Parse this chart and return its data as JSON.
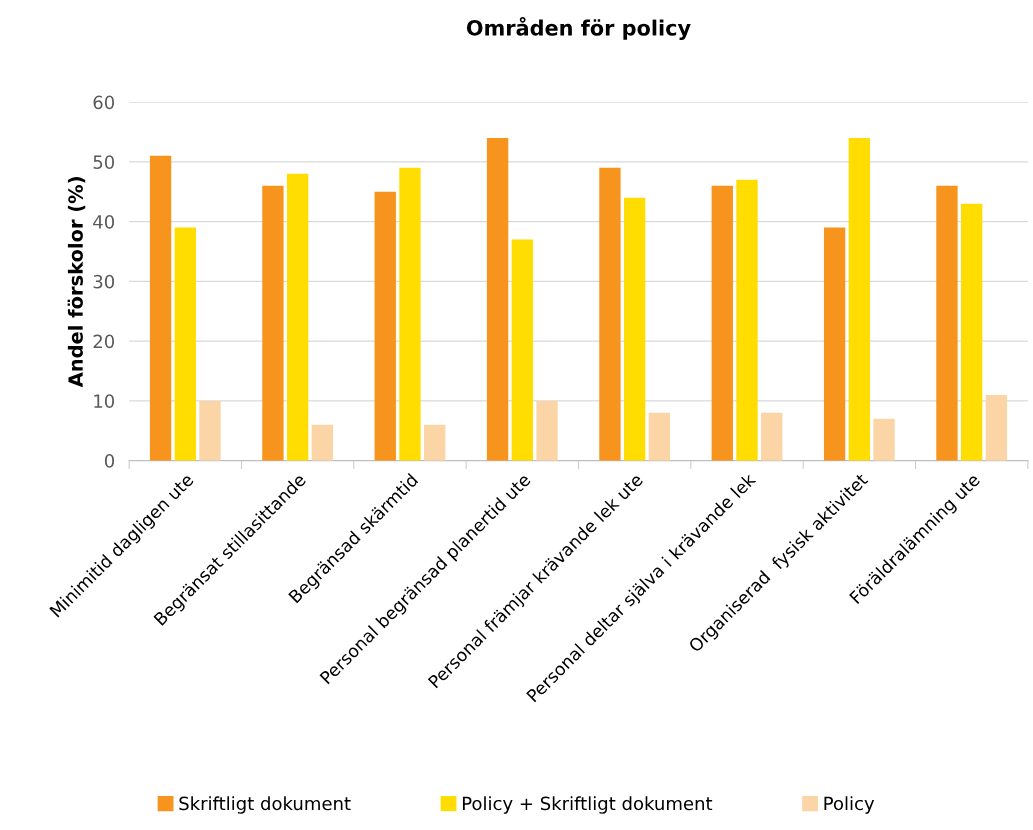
{
  "chart_data": {
    "type": "bar",
    "title": "Områden för policy",
    "ylabel": "Andel förskolor (%)",
    "categories": [
      "Minimitid dagligen ute",
      "Begränsat stillasittande",
      "Begränsad skärmtid",
      "Personal begränsad planertid ute",
      "Personal främjar krävande lek ute",
      "Personal deltar själva i krävande lek",
      "Organiserad  fysisk aktivitet",
      "Föräldralämning ute"
    ],
    "series": [
      {
        "name": "Skriftligt dokument",
        "color": "#f7941d",
        "values": [
          51,
          46,
          45,
          54,
          49,
          46,
          39,
          46
        ]
      },
      {
        "name": "Policy + Skriftligt dokument",
        "color": "#ffdd00",
        "values": [
          39,
          48,
          49,
          37,
          44,
          47,
          54,
          43
        ]
      },
      {
        "name": "Policy",
        "color": "#fbd5a5",
        "values": [
          10,
          6,
          6,
          10,
          8,
          8,
          7,
          11
        ]
      }
    ],
    "ylim": [
      0,
      60
    ],
    "yticks": [
      0,
      10,
      20,
      30,
      40,
      50,
      60
    ],
    "grid": "y",
    "legend": "bottom"
  }
}
